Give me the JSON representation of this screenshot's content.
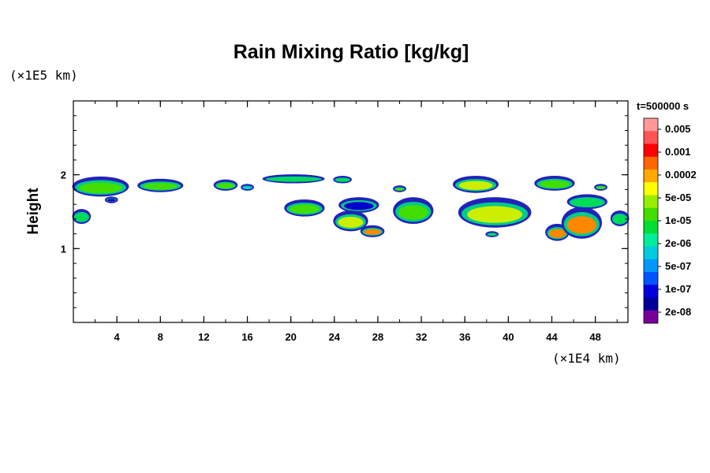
{
  "chart_data": {
    "type": "heatmap",
    "title": "Rain Mixing Ratio [kg/kg]",
    "ylabel": "Height",
    "x_unit_label": "(×1E4 km)",
    "y_unit_label": "(×1E5 km)",
    "time_label": "t=500000 s",
    "xlim": [
      0,
      51
    ],
    "ylim": [
      0,
      3
    ],
    "x_ticks": [
      4,
      8,
      12,
      16,
      20,
      24,
      28,
      32,
      36,
      40,
      44,
      48
    ],
    "y_ticks": [
      1,
      2
    ],
    "legend_placement": "right",
    "colorbar": {
      "labels": [
        "0.005",
        "0.001",
        "0.0002",
        "5e-05",
        "1e-05",
        "2e-06",
        "5e-07",
        "1e-07",
        "2e-08"
      ],
      "colors_top_to_bottom": [
        "#ff9999",
        "#ff5555",
        "#ff0000",
        "#ff6600",
        "#ffaa00",
        "#ffff00",
        "#99ee00",
        "#44dd00",
        "#00dd33",
        "#00ee99",
        "#00ccdd",
        "#0099ff",
        "#0055ff",
        "#0000dd",
        "#000099",
        "#770099"
      ]
    },
    "regions": [
      {
        "x": [
          0,
          5
        ],
        "y": [
          1.72,
          1.96
        ],
        "level": "1e-05"
      },
      {
        "x": [
          3,
          4
        ],
        "y": [
          1.63,
          1.69
        ],
        "level": "1e-07"
      },
      {
        "x": [
          0,
          1.5
        ],
        "y": [
          1.35,
          1.52
        ],
        "level": "2e-06"
      },
      {
        "x": [
          6,
          10
        ],
        "y": [
          1.78,
          1.93
        ],
        "level": "1e-05"
      },
      {
        "x": [
          13,
          15
        ],
        "y": [
          1.8,
          1.92
        ],
        "level": "1e-05"
      },
      {
        "x": [
          15.5,
          16.5
        ],
        "y": [
          1.8,
          1.86
        ],
        "level": "5e-07"
      },
      {
        "x": [
          17.5,
          23
        ],
        "y": [
          1.9,
          1.99
        ],
        "level": "2e-06"
      },
      {
        "x": [
          24,
          25.5
        ],
        "y": [
          1.9,
          1.97
        ],
        "level": "2e-06"
      },
      {
        "x": [
          29.5,
          30.5
        ],
        "y": [
          1.78,
          1.84
        ],
        "level": "1e-05"
      },
      {
        "x": [
          35,
          39
        ],
        "y": [
          1.77,
          1.97
        ],
        "level": "5e-05"
      },
      {
        "x": [
          42.5,
          46
        ],
        "y": [
          1.8,
          1.97
        ],
        "level": "1e-05"
      },
      {
        "x": [
          48,
          49
        ],
        "y": [
          1.8,
          1.86
        ],
        "level": "1e-05"
      },
      {
        "x": [
          19.5,
          23
        ],
        "y": [
          1.45,
          1.65
        ],
        "level": "1e-05"
      },
      {
        "x": [
          24.5,
          28
        ],
        "y": [
          1.5,
          1.68
        ],
        "level": "1e-07"
      },
      {
        "x": [
          24,
          27
        ],
        "y": [
          1.25,
          1.5
        ],
        "level": "5e-05"
      },
      {
        "x": [
          26.5,
          28.5
        ],
        "y": [
          1.17,
          1.3
        ],
        "level": "0.0002"
      },
      {
        "x": [
          29.5,
          33
        ],
        "y": [
          1.35,
          1.68
        ],
        "level": "1e-05"
      },
      {
        "x": [
          35.5,
          42
        ],
        "y": [
          1.3,
          1.68
        ],
        "level": "5e-05"
      },
      {
        "x": [
          38,
          39
        ],
        "y": [
          1.17,
          1.22
        ],
        "level": "2e-06"
      },
      {
        "x": [
          43.5,
          45.5
        ],
        "y": [
          1.12,
          1.32
        ],
        "level": "0.0002"
      },
      {
        "x": [
          45,
          48.5
        ],
        "y": [
          1.15,
          1.55
        ],
        "level": "0.0002"
      },
      {
        "x": [
          45.5,
          49
        ],
        "y": [
          1.55,
          1.72
        ],
        "level": "2e-06"
      },
      {
        "x": [
          49.5,
          51
        ],
        "y": [
          1.32,
          1.5
        ],
        "level": "2e-06"
      }
    ]
  }
}
